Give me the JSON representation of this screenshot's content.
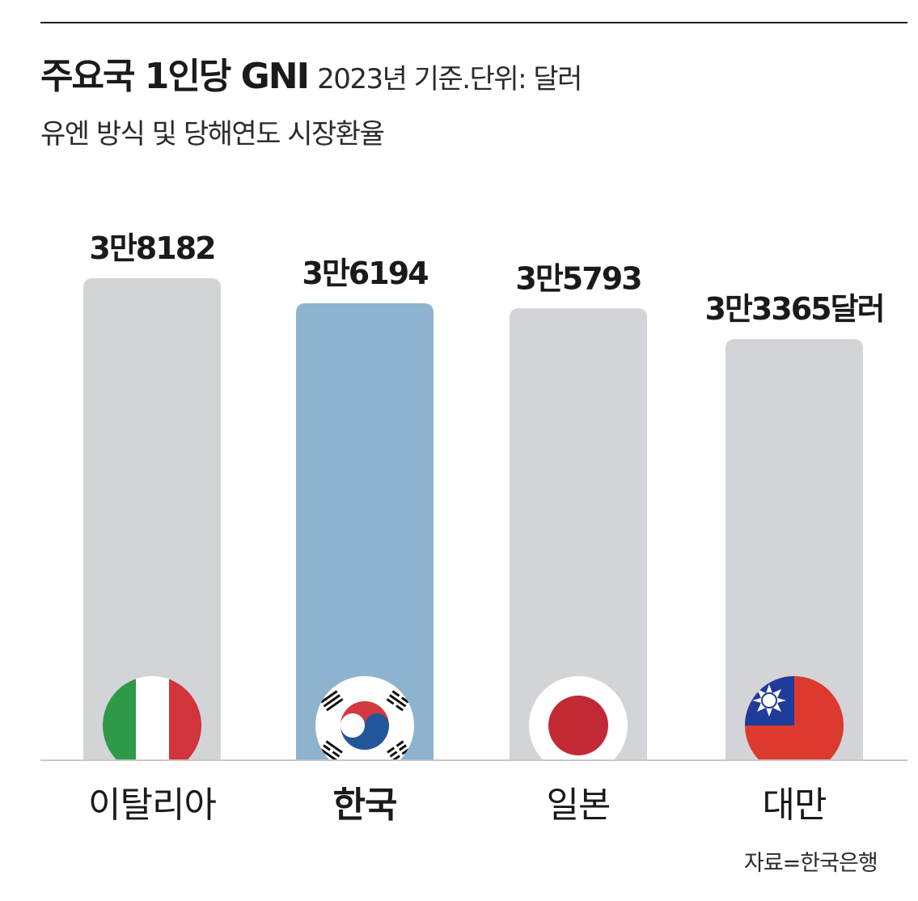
{
  "chart_data": {
    "type": "bar",
    "title": "주요국 1인당 GNI",
    "title_note": "2023년 기준.단위: 달러",
    "subtitle": "유엔 방식 및 당해연도 시장환율",
    "source": "자료=한국은행",
    "categories": [
      "이탈리아",
      "한국",
      "일본",
      "대만"
    ],
    "values": [
      38182,
      36194,
      35793,
      33365
    ],
    "value_labels": [
      "3만8182",
      "3만6194",
      "3만5793",
      "3만3365달러"
    ],
    "highlight": "한국",
    "ylim": [
      0,
      38182
    ],
    "grid": false,
    "colors": {
      "bar": "#d3d4d8",
      "highlight_bar": "#8db3ce",
      "baseline": "#c8c8c8",
      "text": "#1a1a1a"
    },
    "flags": [
      "italy-flag",
      "south-korea-flag",
      "japan-flag",
      "taiwan-flag"
    ]
  }
}
